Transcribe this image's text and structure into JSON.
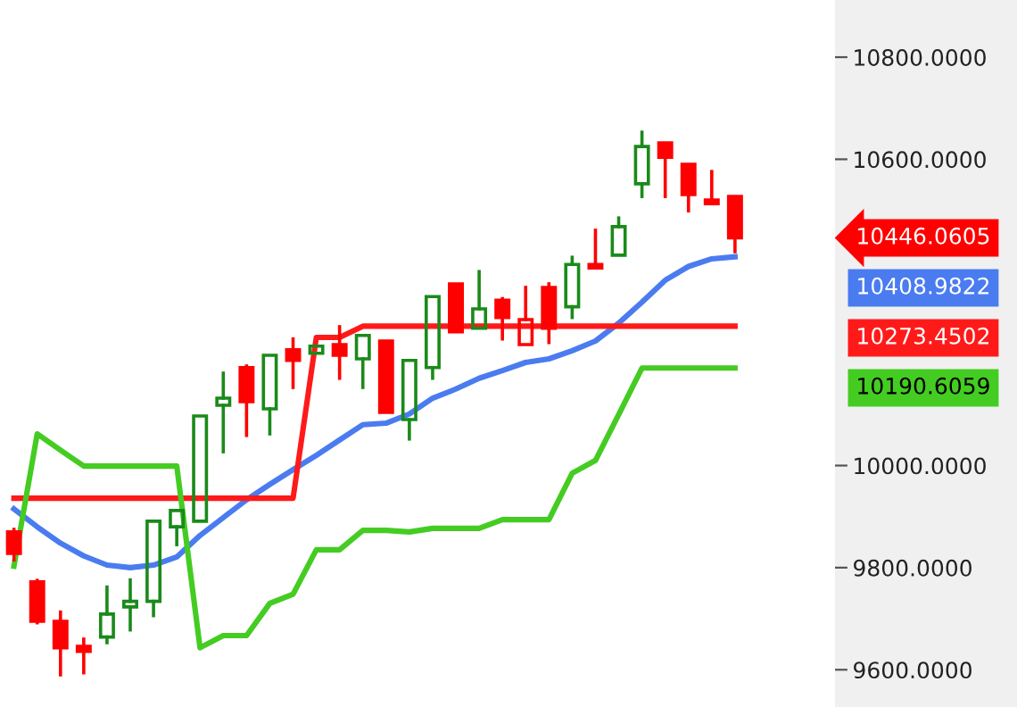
{
  "chart_data": {
    "type": "candlestick",
    "categories": [
      null,
      null,
      null,
      null,
      null,
      null,
      null,
      null,
      null,
      null,
      null,
      null,
      null,
      null,
      null,
      null,
      null,
      null,
      null,
      null,
      null,
      null,
      null,
      null,
      null,
      null,
      null,
      null,
      null,
      null,
      null,
      null
    ],
    "ohlc": [
      [
        9870,
        9875,
        9815,
        9828
      ],
      [
        9772,
        9775,
        9692,
        9695
      ],
      [
        9695,
        9713,
        9590,
        9643
      ],
      [
        9646,
        9660,
        9594,
        9636
      ],
      [
        9664,
        9762,
        9653,
        9709
      ],
      [
        9723,
        9776,
        9678,
        9734
      ],
      [
        9734,
        9891,
        9706,
        9891
      ],
      [
        9880,
        9912,
        9845,
        9912
      ],
      [
        9891,
        10097,
        9891,
        10097
      ],
      [
        10118,
        10181,
        10027,
        10132
      ],
      [
        10192,
        10195,
        10059,
        10125
      ],
      [
        10111,
        10216,
        10062,
        10216
      ],
      [
        10227,
        10248,
        10153,
        10206
      ],
      [
        10220,
        10234,
        10220,
        10234
      ],
      [
        10237,
        10272,
        10171,
        10216
      ],
      [
        10209,
        10255,
        10153,
        10255
      ],
      [
        10244,
        10244,
        10104,
        10104
      ],
      [
        10090,
        10206,
        10052,
        10206
      ],
      [
        10192,
        10331,
        10171,
        10331
      ],
      [
        10356,
        10356,
        10262,
        10262
      ],
      [
        10269,
        10380,
        10269,
        10307
      ],
      [
        10324,
        10327,
        10248,
        10290
      ],
      [
        10237,
        10349,
        10237,
        10286
      ],
      [
        10349,
        10356,
        10241,
        10269
      ],
      [
        10311,
        10408,
        10290,
        10394
      ],
      [
        10394,
        10461,
        10387,
        10387
      ],
      [
        10412,
        10485,
        10412,
        10468
      ],
      [
        10552,
        10653,
        10527,
        10625
      ],
      [
        10632,
        10632,
        10527,
        10604
      ],
      [
        10590,
        10590,
        10499,
        10531
      ],
      [
        10520,
        10576,
        10513,
        10513
      ],
      [
        10527,
        10527,
        10419,
        10446
      ]
    ],
    "colors": [
      "#ff0000",
      "#ff0000",
      "#ff0000",
      "#ff0000",
      "#1a8a1a",
      "#1a8a1a",
      "#1a8a1a",
      "#1a8a1a",
      "#1a8a1a",
      "#1a8a1a",
      "#ff0000",
      "#1a8a1a",
      "#ff0000",
      "#1a8a1a",
      "#ff0000",
      "#1a8a1a",
      "#ff0000",
      "#1a8a1a",
      "#1a8a1a",
      "#ff0000",
      "#1a8a1a",
      "#ff0000",
      "#ff0000",
      "#ff0000",
      "#1a8a1a",
      "#ff0000",
      "#1a8a1a",
      "#1a8a1a",
      "#ff0000",
      "#ff0000",
      "#ff0000",
      "#ff0000"
    ],
    "series": [
      {
        "type": "line",
        "color": "#4a7cf0",
        "values": [
          9915,
          9880,
          9848,
          9823,
          9805,
          9800,
          9805,
          9821,
          9863,
          9898,
          9933,
          9963,
          9992,
          10020,
          10050,
          10080,
          10083,
          10101,
          10132,
          10150,
          10171,
          10186,
          10202,
          10209,
          10225,
          10244,
          10279,
          10320,
          10363,
          10390,
          10405,
          10409
        ]
      },
      {
        "type": "line",
        "color": "#ff1a1a",
        "values": [
          9936,
          9936,
          9936,
          9936,
          9936,
          9936,
          9936,
          9936,
          9936,
          9936,
          9936,
          9936,
          9936,
          10251,
          10251,
          10273,
          10273,
          10273,
          10273,
          10273,
          10273,
          10273,
          10273,
          10273,
          10273,
          10273,
          10273,
          10273,
          10273,
          10273,
          10273,
          10273
        ]
      },
      {
        "type": "line",
        "color": "#44cc22",
        "values": [
          9803,
          10062,
          10030,
          9999,
          9999,
          9999,
          9999,
          9999,
          9643,
          9667,
          9667,
          9730,
          9748,
          9835,
          9835,
          9873,
          9873,
          9870,
          9877,
          9877,
          9877,
          9894,
          9894,
          9894,
          9985,
          10010,
          10100,
          10191,
          10191,
          10191,
          10191,
          10191
        ]
      }
    ],
    "ylim": [
      9527,
      10912
    ],
    "yticks": [
      {
        "value": 9600,
        "label": "9600.0000"
      },
      {
        "value": 9800,
        "label": "9800.0000"
      },
      {
        "value": 10000,
        "label": "10000.0000"
      },
      {
        "value": 10600,
        "label": "10600.0000"
      },
      {
        "value": 10800,
        "label": "10800.0000"
      }
    ],
    "annotations": [
      "10446.0605",
      "10408.9822",
      "10273.4502",
      "10190.6059"
    ],
    "grid": false,
    "legend": false
  }
}
